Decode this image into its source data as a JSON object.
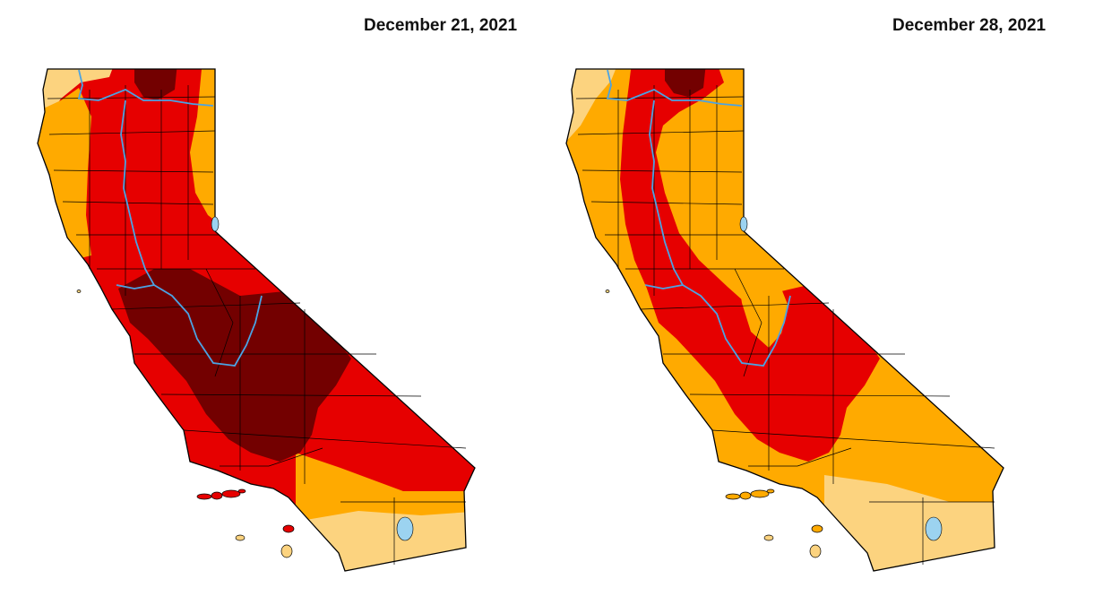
{
  "maps": [
    {
      "title": "December 21, 2021",
      "colors": {
        "base": "#E60000",
        "abnormally_dry": "#FCD37F",
        "moderate": "#FFAA00",
        "severe": "#E60000",
        "extreme": "#730000",
        "water": "#9CD3F0",
        "river": "#4BA3E3",
        "border": "#000000"
      }
    },
    {
      "title": "December 28, 2021",
      "colors": {
        "base": "#FFAA00",
        "abnormally_dry": "#FCD37F",
        "moderate": "#FFAA00",
        "severe": "#E60000",
        "extreme": "#730000",
        "water": "#9CD3F0",
        "river": "#4BA3E3",
        "border": "#000000"
      }
    }
  ]
}
